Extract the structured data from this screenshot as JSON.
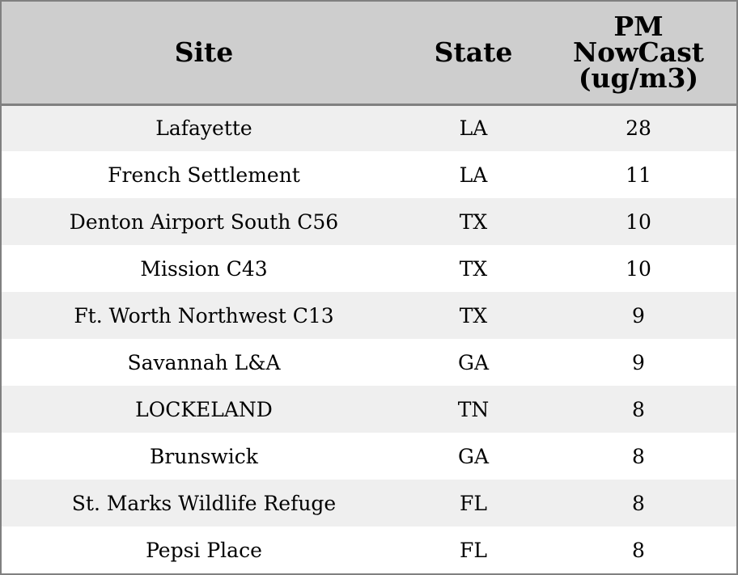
{
  "chart_data": {
    "type": "table",
    "columns": [
      "Site",
      "State",
      "PM\nNowCast\n(ug/m3)"
    ],
    "rows": [
      {
        "site": "Lafayette",
        "state": "LA",
        "pm": "28"
      },
      {
        "site": "French Settlement",
        "state": "LA",
        "pm": "11"
      },
      {
        "site": "Denton Airport South C56",
        "state": "TX",
        "pm": "10"
      },
      {
        "site": "Mission C43",
        "state": "TX",
        "pm": "10"
      },
      {
        "site": "Ft. Worth Northwest C13",
        "state": "TX",
        "pm": "9"
      },
      {
        "site": "Savannah L&A",
        "state": "GA",
        "pm": "9"
      },
      {
        "site": "LOCKELAND",
        "state": "TN",
        "pm": "8"
      },
      {
        "site": "Brunswick",
        "state": "GA",
        "pm": "8"
      },
      {
        "site": "St. Marks Wildlife Refuge",
        "state": "FL",
        "pm": "8"
      },
      {
        "site": "Pepsi Place",
        "state": "FL",
        "pm": "8"
      }
    ],
    "colors": {
      "header_bg": "#cecece",
      "row_stripe": "#efefef",
      "row_plain": "#ffffff",
      "border": "#808080"
    }
  }
}
